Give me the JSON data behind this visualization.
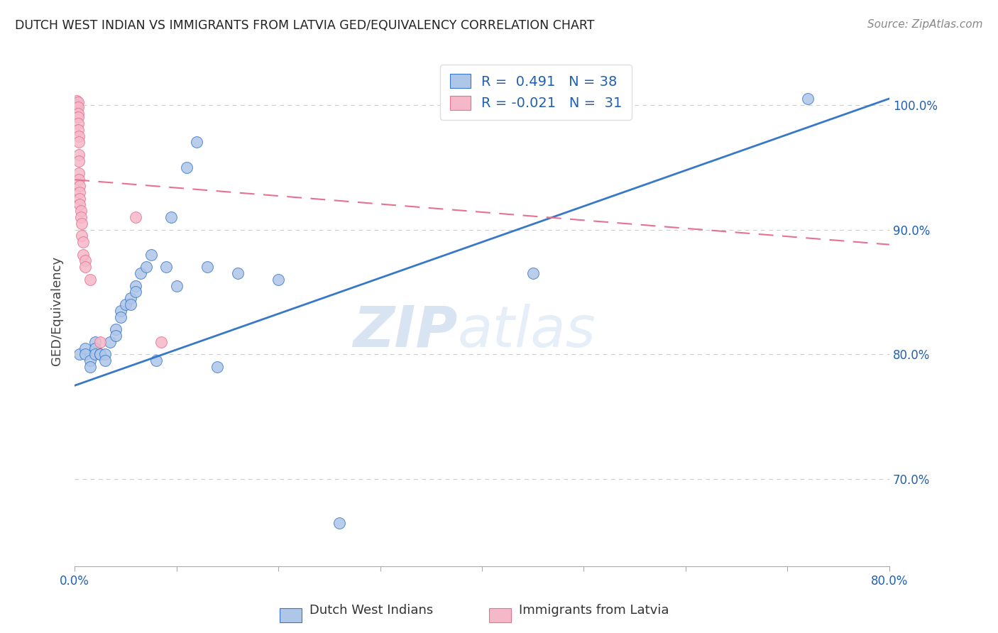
{
  "title": "DUTCH WEST INDIAN VS IMMIGRANTS FROM LATVIA GED/EQUIVALENCY CORRELATION CHART",
  "source": "Source: ZipAtlas.com",
  "ylabel": "GED/Equivalency",
  "xlim": [
    0.0,
    0.8
  ],
  "ylim": [
    0.63,
    1.04
  ],
  "blue_R": 0.491,
  "blue_N": 38,
  "pink_R": -0.021,
  "pink_N": 31,
  "blue_color": "#aec6e8",
  "pink_color": "#f5b8c8",
  "blue_line_color": "#3878c8",
  "pink_line_color": "#e87090",
  "watermark_zip": "ZIP",
  "watermark_atlas": "atlas",
  "blue_scatter_x": [
    0.005,
    0.01,
    0.01,
    0.015,
    0.015,
    0.02,
    0.02,
    0.02,
    0.025,
    0.025,
    0.03,
    0.03,
    0.035,
    0.04,
    0.04,
    0.045,
    0.045,
    0.05,
    0.055,
    0.055,
    0.06,
    0.06,
    0.065,
    0.07,
    0.075,
    0.08,
    0.09,
    0.095,
    0.1,
    0.11,
    0.12,
    0.13,
    0.14,
    0.16,
    0.2,
    0.26,
    0.45,
    0.72
  ],
  "blue_scatter_y": [
    0.8,
    0.805,
    0.8,
    0.795,
    0.79,
    0.81,
    0.805,
    0.8,
    0.8,
    0.8,
    0.8,
    0.795,
    0.81,
    0.82,
    0.815,
    0.835,
    0.83,
    0.84,
    0.845,
    0.84,
    0.855,
    0.85,
    0.865,
    0.87,
    0.88,
    0.795,
    0.87,
    0.91,
    0.855,
    0.95,
    0.97,
    0.87,
    0.79,
    0.865,
    0.86,
    0.665,
    0.865,
    1.005
  ],
  "pink_scatter_x": [
    0.002,
    0.002,
    0.002,
    0.003,
    0.003,
    0.003,
    0.003,
    0.003,
    0.003,
    0.004,
    0.004,
    0.004,
    0.004,
    0.004,
    0.004,
    0.005,
    0.005,
    0.005,
    0.005,
    0.006,
    0.006,
    0.007,
    0.007,
    0.008,
    0.008,
    0.01,
    0.01,
    0.015,
    0.025,
    0.06,
    0.085
  ],
  "pink_scatter_y": [
    1.003,
    1.0,
    0.998,
    1.002,
    0.998,
    0.993,
    0.99,
    0.985,
    0.98,
    0.975,
    0.97,
    0.96,
    0.955,
    0.945,
    0.94,
    0.935,
    0.93,
    0.925,
    0.92,
    0.915,
    0.91,
    0.905,
    0.895,
    0.89,
    0.88,
    0.875,
    0.87,
    0.86,
    0.81,
    0.91,
    0.81
  ],
  "blue_line_x0": 0.0,
  "blue_line_y0": 0.775,
  "blue_line_x1": 0.8,
  "blue_line_y1": 1.005,
  "pink_line_x0": 0.0,
  "pink_line_y0": 0.94,
  "pink_line_x1": 0.8,
  "pink_line_y1": 0.888
}
